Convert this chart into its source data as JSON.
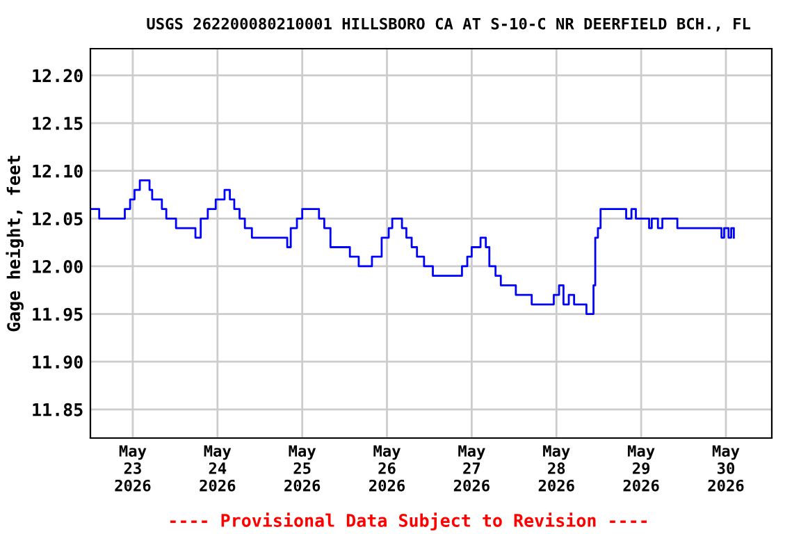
{
  "chart_data": {
    "type": "step",
    "title": "USGS 262200080210001 HILLSBORO CA AT S-10-C NR DEERFIELD BCH., FL",
    "ylabel": "Gage height, feet",
    "annotations": [
      "---- Provisional Data Subject to Revision ----"
    ],
    "x": [
      "2026-05-22T12:00",
      "2026-05-22T14:30",
      "2026-05-22T21:45",
      "2026-05-22T23:15",
      "2026-05-23T00:30",
      "2026-05-23T02:00",
      "2026-05-23T04:45",
      "2026-05-23T05:30",
      "2026-05-23T08:15",
      "2026-05-23T09:30",
      "2026-05-23T12:15",
      "2026-05-23T17:45",
      "2026-05-23T19:15",
      "2026-05-23T21:15",
      "2026-05-23T23:30",
      "2026-05-24T02:00",
      "2026-05-24T03:30",
      "2026-05-24T04:45",
      "2026-05-24T06:15",
      "2026-05-24T07:45",
      "2026-05-24T09:45",
      "2026-05-24T19:45",
      "2026-05-24T20:45",
      "2026-05-24T22:30",
      "2026-05-25T00:00",
      "2026-05-25T04:45",
      "2026-05-25T06:15",
      "2026-05-25T08:00",
      "2026-05-25T13:30",
      "2026-05-25T16:00",
      "2026-05-25T19:45",
      "2026-05-25T22:30",
      "2026-05-26T00:30",
      "2026-05-26T01:30",
      "2026-05-26T04:15",
      "2026-05-26T05:30",
      "2026-05-26T07:00",
      "2026-05-26T08:30",
      "2026-05-26T10:30",
      "2026-05-26T13:00",
      "2026-05-26T21:15",
      "2026-05-26T22:45",
      "2026-05-27T00:00",
      "2026-05-27T02:30",
      "2026-05-27T04:00",
      "2026-05-27T05:00",
      "2026-05-27T06:45",
      "2026-05-27T08:15",
      "2026-05-27T12:30",
      "2026-05-27T17:00",
      "2026-05-27T23:15",
      "2026-05-28T00:45",
      "2026-05-28T02:00",
      "2026-05-28T03:30",
      "2026-05-28T05:00",
      "2026-05-28T08:30",
      "2026-05-28T10:30",
      "2026-05-28T11:00",
      "2026-05-28T11:45",
      "2026-05-28T12:30",
      "2026-05-28T19:45",
      "2026-05-28T21:15",
      "2026-05-28T22:30",
      "2026-05-29T02:15",
      "2026-05-29T03:00",
      "2026-05-29T04:45",
      "2026-05-29T06:00",
      "2026-05-29T10:15",
      "2026-05-29T22:45",
      "2026-05-29T23:30",
      "2026-05-30T00:45",
      "2026-05-30T01:30",
      "2026-05-30T02:15"
    ],
    "series": [
      {
        "color": "#0000ff",
        "values": [
          12.06,
          12.05,
          12.06,
          12.07,
          12.08,
          12.09,
          12.08,
          12.07,
          12.06,
          12.05,
          12.04,
          12.03,
          12.05,
          12.06,
          12.07,
          12.08,
          12.07,
          12.06,
          12.05,
          12.04,
          12.03,
          12.02,
          12.04,
          12.05,
          12.06,
          12.05,
          12.04,
          12.02,
          12.01,
          12.0,
          12.01,
          12.03,
          12.04,
          12.05,
          12.04,
          12.03,
          12.02,
          12.01,
          12.0,
          11.99,
          12.0,
          12.01,
          12.02,
          12.03,
          12.02,
          12.0,
          11.99,
          11.98,
          11.97,
          11.96,
          11.97,
          11.98,
          11.96,
          11.97,
          11.96,
          11.95,
          11.98,
          12.03,
          12.04,
          12.06,
          12.05,
          12.06,
          12.05,
          12.04,
          12.05,
          12.04,
          12.05,
          12.04,
          12.03,
          12.04,
          12.03,
          12.04,
          12.03
        ]
      }
    ],
    "xlim": [
      "2026-05-22T12:00",
      "2026-05-30T13:00"
    ],
    "xticks": [
      {
        "value": "2026-05-23",
        "label": "May\n23\n2026"
      },
      {
        "value": "2026-05-24",
        "label": "May\n24\n2026"
      },
      {
        "value": "2026-05-25",
        "label": "May\n25\n2026"
      },
      {
        "value": "2026-05-26",
        "label": "May\n26\n2026"
      },
      {
        "value": "2026-05-27",
        "label": "May\n27\n2026"
      },
      {
        "value": "2026-05-28",
        "label": "May\n28\n2026"
      },
      {
        "value": "2026-05-29",
        "label": "May\n29\n2026"
      },
      {
        "value": "2026-05-30",
        "label": "May\n30\n2026"
      }
    ],
    "ylim": [
      11.82,
      12.228
    ],
    "yticks": [
      {
        "value": 11.85,
        "label": "11.85"
      },
      {
        "value": 11.9,
        "label": "11.90"
      },
      {
        "value": 11.95,
        "label": "11.95"
      },
      {
        "value": 12.0,
        "label": "12.00"
      },
      {
        "value": 12.05,
        "label": "12.05"
      },
      {
        "value": 12.1,
        "label": "12.10"
      },
      {
        "value": 12.15,
        "label": "12.15"
      },
      {
        "value": 12.2,
        "label": "12.20"
      }
    ],
    "grid": true
  }
}
